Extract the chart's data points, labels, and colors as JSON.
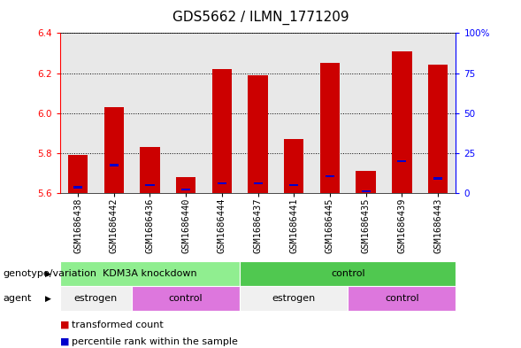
{
  "title": "GDS5662 / ILMN_1771209",
  "samples": [
    "GSM1686438",
    "GSM1686442",
    "GSM1686436",
    "GSM1686440",
    "GSM1686444",
    "GSM1686437",
    "GSM1686441",
    "GSM1686445",
    "GSM1686435",
    "GSM1686439",
    "GSM1686443"
  ],
  "transformed_count": [
    5.79,
    6.03,
    5.83,
    5.68,
    6.22,
    6.19,
    5.87,
    6.25,
    5.71,
    6.31,
    6.24
  ],
  "percentile_pos": [
    5.624,
    5.735,
    5.634,
    5.614,
    5.644,
    5.644,
    5.634,
    5.678,
    5.604,
    5.754,
    5.668
  ],
  "percentile_height": [
    0.01,
    0.01,
    0.01,
    0.01,
    0.01,
    0.01,
    0.01,
    0.01,
    0.01,
    0.01,
    0.01
  ],
  "bar_bottom": 5.6,
  "ylim_left": [
    5.6,
    6.4
  ],
  "ylim_right": [
    0,
    100
  ],
  "yticks_left": [
    5.6,
    5.8,
    6.0,
    6.2,
    6.4
  ],
  "yticks_right": [
    0,
    25,
    50,
    75,
    100
  ],
  "ytick_labels_right": [
    "0",
    "25",
    "50",
    "75",
    "100%"
  ],
  "bar_color": "#cc0000",
  "percentile_color": "#0000cc",
  "plot_bg_color": "#e8e8e8",
  "genotype_groups": [
    {
      "label": "KDM3A knockdown",
      "start": 0,
      "end": 5,
      "color": "#90ee90"
    },
    {
      "label": "control",
      "start": 5,
      "end": 11,
      "color": "#50c850"
    }
  ],
  "agent_groups": [
    {
      "label": "estrogen",
      "start": 0,
      "end": 2,
      "color": "#f0f0f0"
    },
    {
      "label": "control",
      "start": 2,
      "end": 5,
      "color": "#dd77dd"
    },
    {
      "label": "estrogen",
      "start": 5,
      "end": 8,
      "color": "#f0f0f0"
    },
    {
      "label": "control",
      "start": 8,
      "end": 11,
      "color": "#dd77dd"
    }
  ],
  "legend_items": [
    {
      "label": "transformed count",
      "color": "#cc0000"
    },
    {
      "label": "percentile rank within the sample",
      "color": "#0000cc"
    }
  ],
  "left_label_genotype": "genotype/variation",
  "left_label_agent": "agent",
  "bar_width": 0.55,
  "title_fontsize": 11,
  "tick_fontsize": 7.5,
  "label_fontsize": 8
}
